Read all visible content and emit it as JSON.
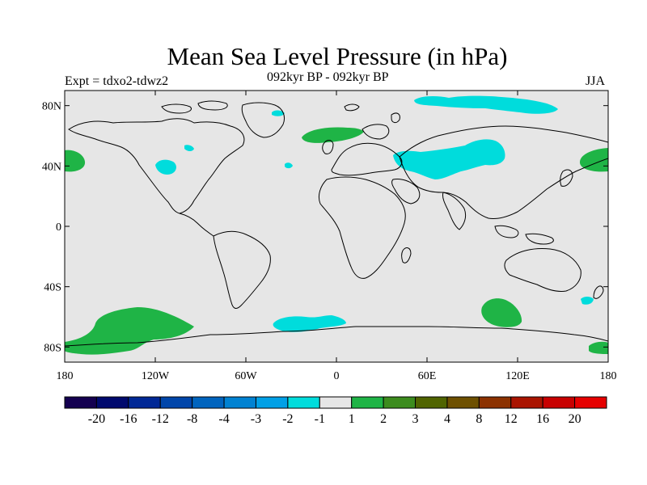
{
  "header": {
    "title": "Mean Sea Level Pressure (in hPa)",
    "left_string": "Expt = tdxo2-tdwz2",
    "center_string": "092kyr BP - 092kyr BP",
    "right_string": "JJA"
  },
  "map": {
    "projection": "cylindrical-equidistant",
    "background": "#e6e6e6",
    "lat_ticks": [
      "80N",
      "40N",
      "0",
      "40S",
      "80S"
    ],
    "lat_values": [
      80,
      40,
      0,
      -40,
      -80
    ],
    "lon_ticks": [
      "180",
      "120W",
      "60W",
      "0",
      "60E",
      "120E",
      "180"
    ],
    "lon_values": [
      -180,
      -120,
      -60,
      0,
      60,
      120,
      180
    ]
  },
  "colorbar": {
    "labels": [
      "-20",
      "-16",
      "-12",
      "-8",
      "-4",
      "-3",
      "-2",
      "-1",
      "1",
      "2",
      "3",
      "4",
      "8",
      "12",
      "16",
      "20"
    ],
    "colors": [
      "#140050",
      "#000a6e",
      "#002896",
      "#0046aa",
      "#0064be",
      "#0082d2",
      "#00a0e6",
      "#00dcdc",
      "#e6e6e6",
      "#1fb446",
      "#3c8c1e",
      "#506400",
      "#6e5000",
      "#8c3200",
      "#aa1400",
      "#c80000",
      "#e60000"
    ]
  },
  "anomaly_regions": [
    {
      "name": "north-pacific-high-west",
      "sign": "positive",
      "color": "#1fb446"
    },
    {
      "name": "north-pacific-high-east",
      "sign": "positive",
      "color": "#1fb446"
    },
    {
      "name": "north-atlantic-positive",
      "sign": "positive",
      "color": "#1fb446"
    },
    {
      "name": "south-pacific-positive",
      "sign": "positive",
      "color": "#1fb446"
    },
    {
      "name": "southern-indian-positive",
      "sign": "positive",
      "color": "#1fb446"
    },
    {
      "name": "ross-sea-positive",
      "sign": "positive",
      "color": "#1fb446"
    },
    {
      "name": "eurasia-negative",
      "sign": "negative",
      "color": "#00dcdc"
    },
    {
      "name": "arctic-negative",
      "sign": "negative",
      "color": "#00dcdc"
    },
    {
      "name": "north-america-negative",
      "sign": "negative",
      "color": "#00dcdc"
    },
    {
      "name": "south-atlantic-negative",
      "sign": "negative",
      "color": "#00dcdc"
    },
    {
      "name": "new-zealand-negative",
      "sign": "negative",
      "color": "#00dcdc"
    }
  ]
}
